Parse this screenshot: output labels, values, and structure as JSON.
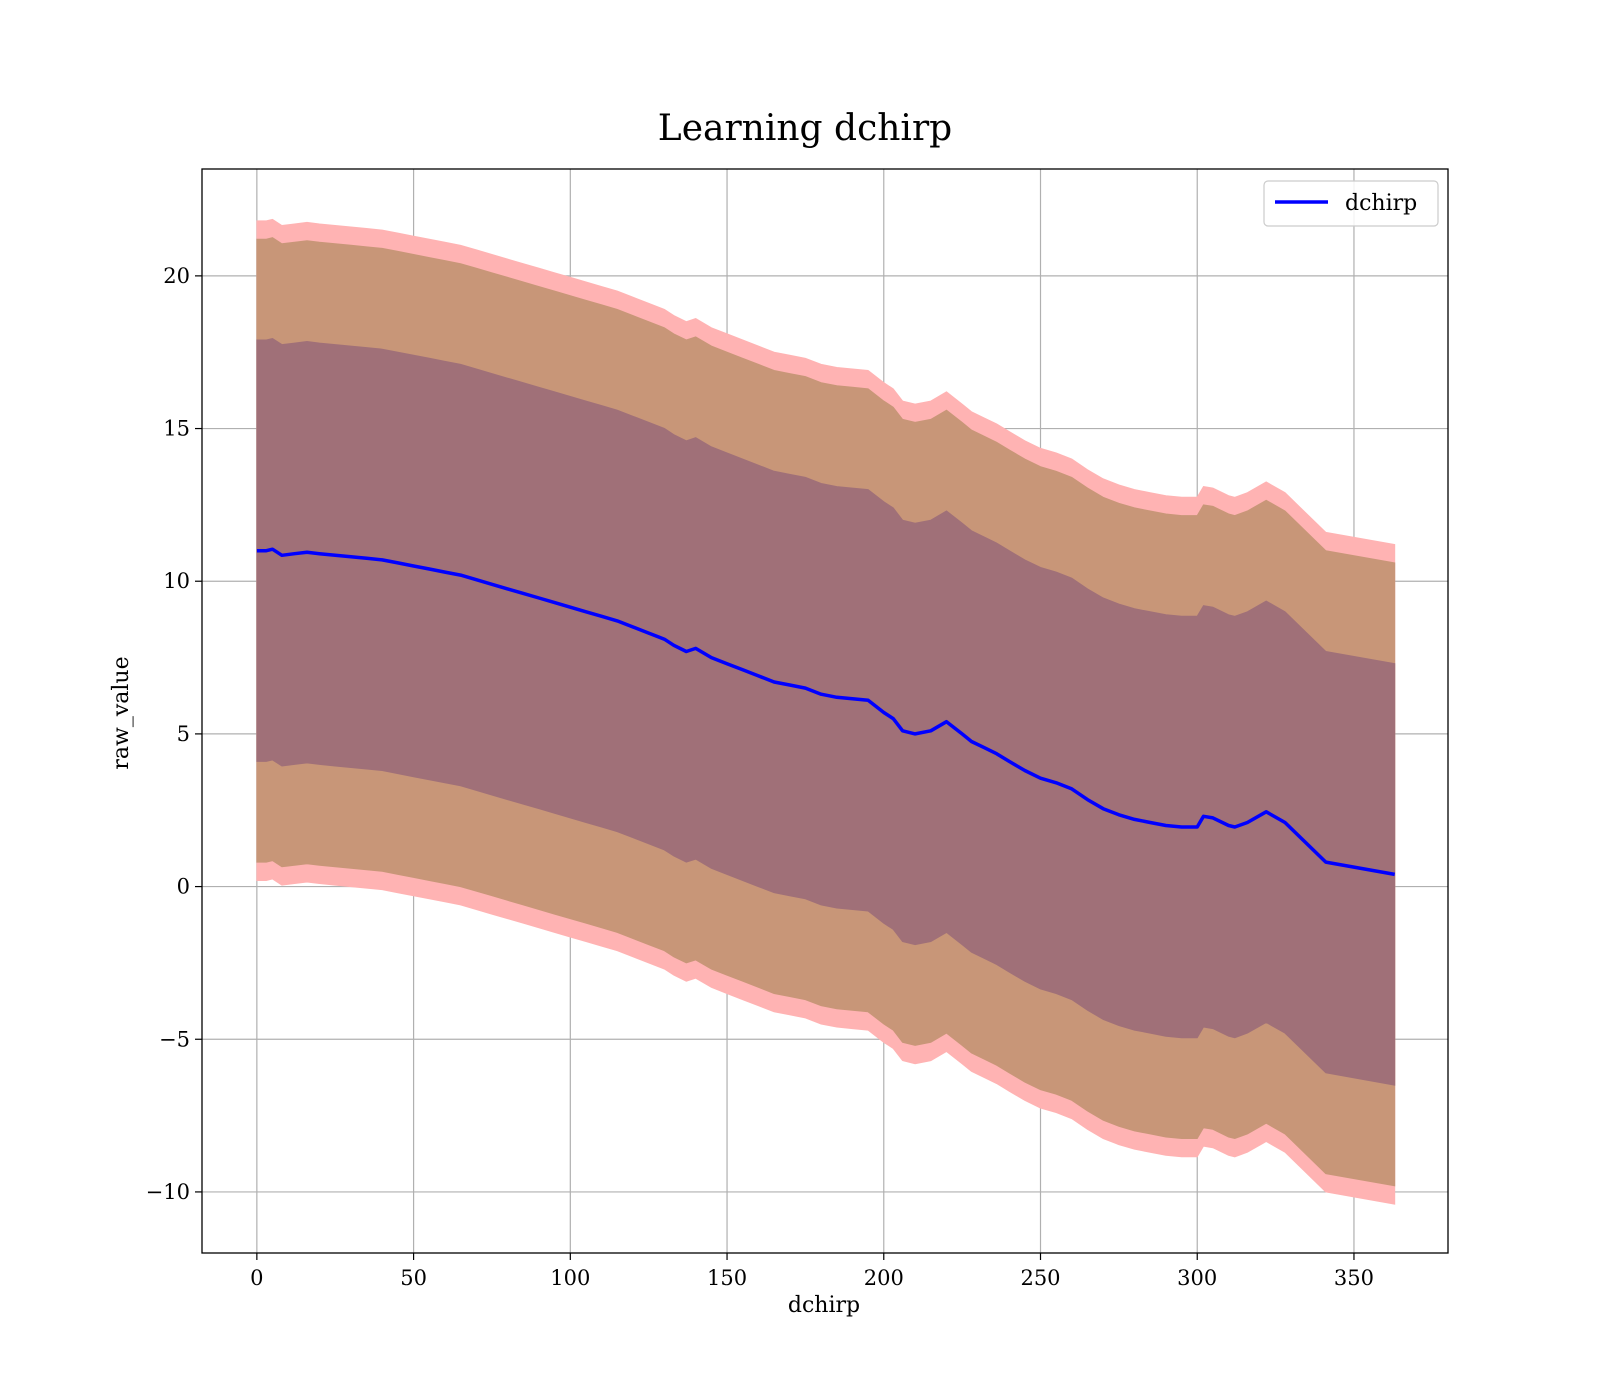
{
  "chart_data": {
    "type": "line",
    "title": "Learning dchirp",
    "xlabel": "dchirp",
    "ylabel": "raw_value",
    "xlim": [
      -17.5,
      380
    ],
    "ylim": [
      -12,
      23.5
    ],
    "xticks": [
      0,
      50,
      100,
      150,
      200,
      250,
      300,
      350
    ],
    "yticks": [
      -10,
      -5,
      0,
      5,
      10,
      15,
      20
    ],
    "ytick_labels": [
      "−10",
      "−5",
      "0",
      "5",
      "10",
      "15",
      "20"
    ],
    "grid": true,
    "legend": {
      "position": "top-right",
      "entries": [
        "dchirp"
      ]
    },
    "colors": {
      "line": "#0000ff",
      "band_outer": "#ffb3b3",
      "band_middle": "#c89678",
      "band_inner": "#a07078",
      "grid": "#b0b0b0"
    },
    "series": [
      {
        "name": "dchirp",
        "x": [
          0,
          3,
          5,
          8,
          12,
          16,
          20,
          25,
          30,
          35,
          40,
          45,
          50,
          55,
          60,
          65,
          70,
          75,
          80,
          85,
          90,
          95,
          100,
          105,
          110,
          115,
          120,
          125,
          130,
          133,
          137,
          140,
          145,
          150,
          155,
          160,
          165,
          170,
          175,
          180,
          185,
          190,
          195,
          200,
          203,
          206,
          210,
          215,
          220,
          225,
          228,
          232,
          236,
          240,
          245,
          250,
          255,
          260,
          265,
          270,
          275,
          280,
          285,
          290,
          295,
          300,
          302,
          305,
          310,
          312,
          316,
          322,
          328,
          341,
          363
        ],
        "values": [
          11.0,
          11.0,
          11.05,
          10.85,
          10.9,
          10.95,
          10.9,
          10.85,
          10.8,
          10.75,
          10.7,
          10.6,
          10.5,
          10.4,
          10.3,
          10.2,
          10.05,
          9.9,
          9.75,
          9.6,
          9.45,
          9.3,
          9.15,
          9.0,
          8.85,
          8.7,
          8.5,
          8.3,
          8.1,
          7.9,
          7.7,
          7.8,
          7.5,
          7.3,
          7.1,
          6.9,
          6.7,
          6.6,
          6.5,
          6.3,
          6.2,
          6.15,
          6.1,
          5.7,
          5.5,
          5.1,
          5.0,
          5.1,
          5.4,
          5.0,
          4.75,
          4.55,
          4.35,
          4.1,
          3.8,
          3.55,
          3.4,
          3.2,
          2.85,
          2.55,
          2.35,
          2.2,
          2.1,
          2.0,
          1.95,
          1.95,
          2.3,
          2.25,
          2.0,
          1.95,
          2.1,
          2.45,
          2.1,
          0.8,
          0.4
        ]
      }
    ],
    "bands": [
      {
        "offset_upper": 10.8,
        "offset_lower": 10.8
      },
      {
        "offset_upper": 10.2,
        "offset_lower": 10.2
      },
      {
        "offset_upper": 6.9,
        "offset_lower": 6.9
      }
    ]
  }
}
